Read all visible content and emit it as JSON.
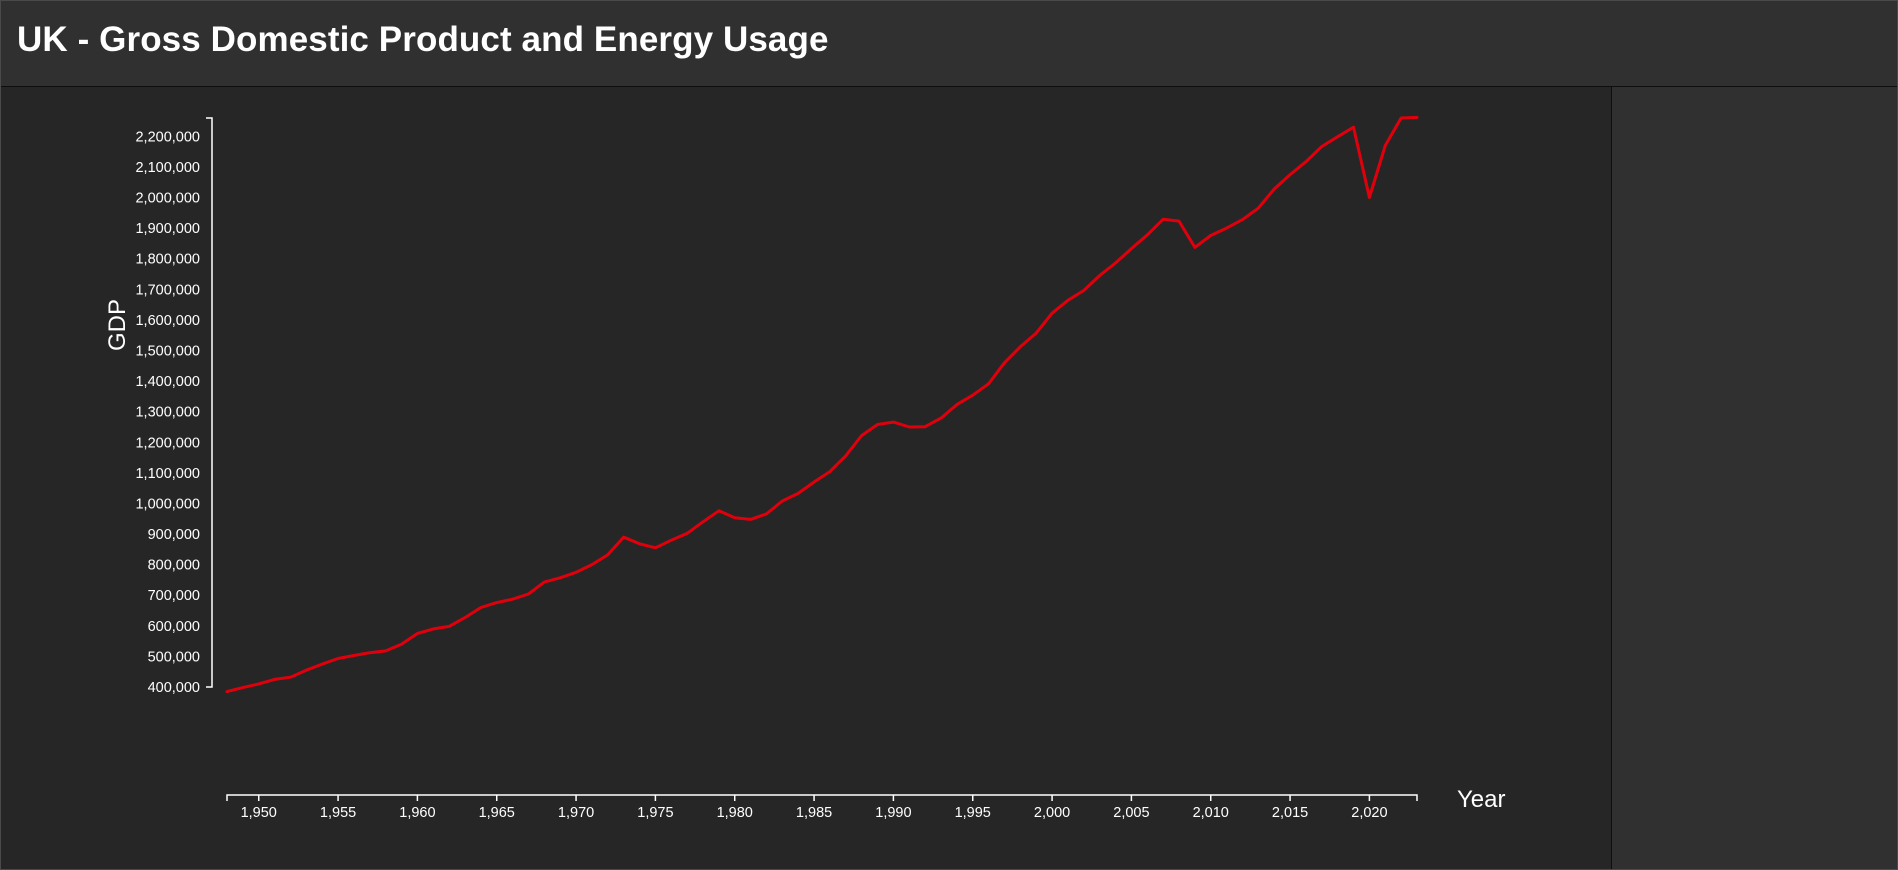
{
  "header": {
    "title": "UK - Gross Domestic Product and Energy Usage"
  },
  "colors": {
    "background": "#262626",
    "header_bg": "#303030",
    "side_panel_bg": "#303030",
    "axis": "#ffffff",
    "series_line": "#e0000c"
  },
  "chart_data": {
    "type": "line",
    "title": "",
    "xlabel": "Year",
    "ylabel": "GDP",
    "xlim": [
      1948,
      2023
    ],
    "ylim": [
      400000,
      2260000
    ],
    "grid": false,
    "x_ticks": [
      1950,
      1955,
      1960,
      1965,
      1970,
      1975,
      1980,
      1985,
      1990,
      1995,
      2000,
      2005,
      2010,
      2015,
      2020
    ],
    "x_tick_labels": [
      "1,950",
      "1,955",
      "1,960",
      "1,965",
      "1,970",
      "1,975",
      "1,980",
      "1,985",
      "1,990",
      "1,995",
      "2,000",
      "2,005",
      "2,010",
      "2,015",
      "2,020"
    ],
    "y_ticks": [
      400000,
      500000,
      600000,
      700000,
      800000,
      900000,
      1000000,
      1100000,
      1200000,
      1300000,
      1400000,
      1500000,
      1600000,
      1700000,
      1800000,
      1900000,
      2000000,
      2100000,
      2200000
    ],
    "y_tick_labels": [
      "400,000",
      "500,000",
      "600,000",
      "700,000",
      "800,000",
      "900,000",
      "1,000,000",
      "1,100,000",
      "1,200,000",
      "1,300,000",
      "1,400,000",
      "1,500,000",
      "1,600,000",
      "1,700,000",
      "1,800,000",
      "1,900,000",
      "2,000,000",
      "2,100,000",
      "2,200,000"
    ],
    "series": [
      {
        "color": "#e0000c",
        "x": [
          1948,
          1949,
          1950,
          1951,
          1952,
          1953,
          1954,
          1955,
          1956,
          1957,
          1958,
          1959,
          1960,
          1961,
          1962,
          1963,
          1964,
          1965,
          1966,
          1967,
          1968,
          1969,
          1970,
          1971,
          1972,
          1973,
          1974,
          1975,
          1976,
          1977,
          1978,
          1979,
          1980,
          1981,
          1982,
          1983,
          1984,
          1985,
          1986,
          1987,
          1988,
          1989,
          1990,
          1991,
          1992,
          1993,
          1994,
          1995,
          1996,
          1997,
          1998,
          1999,
          2000,
          2001,
          2002,
          2003,
          2004,
          2005,
          2006,
          2007,
          2008,
          2009,
          2010,
          2011,
          2012,
          2013,
          2014,
          2015,
          2016,
          2017,
          2018,
          2019,
          2020,
          2021,
          2022,
          2023
        ],
        "values": [
          385000,
          398000,
          410000,
          425000,
          432000,
          455000,
          475000,
          493000,
          503000,
          512000,
          518000,
          540000,
          575000,
          590000,
          598000,
          627000,
          660000,
          676000,
          687000,
          704000,
          743000,
          757000,
          775000,
          800000,
          832000,
          890000,
          868000,
          855000,
          880000,
          902000,
          940000,
          976000,
          953000,
          948000,
          966000,
          1008000,
          1033000,
          1070000,
          1104000,
          1156000,
          1222000,
          1258000,
          1266000,
          1250000,
          1251000,
          1279000,
          1323000,
          1354000,
          1391000,
          1460000,
          1512000,
          1557000,
          1622000,
          1664000,
          1696000,
          1745000,
          1786000,
          1833000,
          1878000,
          1929000,
          1923000,
          1837000,
          1876000,
          1900000,
          1928000,
          1965000,
          2028000,
          2075000,
          2117000,
          2167000,
          2199000,
          2230000,
          2000000,
          2170000,
          2260000,
          2262000
        ]
      }
    ]
  }
}
